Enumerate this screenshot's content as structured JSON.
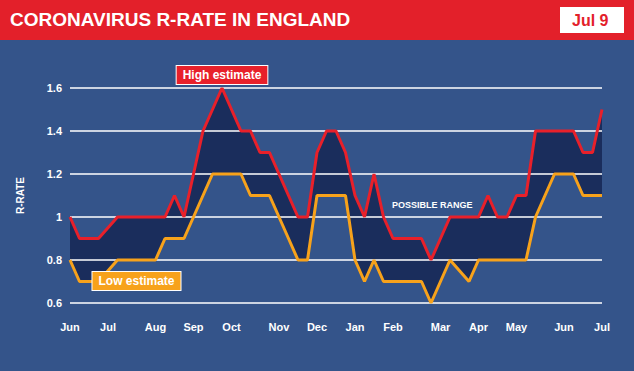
{
  "chart_data": {
    "type": "line",
    "title": "CORONAVIRUS R-RATE IN ENGLAND",
    "subtitle": "Jul 9",
    "ylabel": "R-RATE",
    "annotations": [
      {
        "text": "POSSIBLE RANGE"
      }
    ],
    "categories": [
      "Jun",
      null,
      null,
      null,
      "Jul",
      null,
      null,
      null,
      null,
      "Aug",
      null,
      null,
      null,
      "Sep",
      null,
      null,
      null,
      "Oct",
      null,
      null,
      null,
      null,
      "Nov",
      null,
      null,
      null,
      "Dec",
      null,
      null,
      null,
      "Jan",
      null,
      null,
      null,
      "Feb",
      null,
      null,
      null,
      null,
      "Mar",
      null,
      null,
      null,
      "Apr",
      null,
      null,
      null,
      "May",
      null,
      null,
      null,
      null,
      "Jun",
      null,
      null,
      null,
      "Jul"
    ],
    "series": [
      {
        "name": "High estimate",
        "color": "#e8202a",
        "values": [
          1.0,
          0.9,
          0.9,
          0.9,
          0.95,
          1.0,
          1.0,
          1.0,
          1.0,
          1.0,
          1.0,
          1.1,
          1.0,
          1.2,
          1.4,
          1.5,
          1.6,
          1.5,
          1.4,
          1.4,
          1.3,
          1.3,
          1.2,
          1.1,
          1.0,
          1.0,
          1.3,
          1.4,
          1.4,
          1.3,
          1.1,
          1.0,
          1.2,
          1.0,
          0.9,
          0.9,
          0.9,
          0.9,
          0.8,
          0.9,
          1.0,
          1.0,
          1.0,
          1.0,
          1.1,
          1.0,
          1.0,
          1.1,
          1.1,
          1.4,
          1.4,
          1.4,
          1.4,
          1.4,
          1.3,
          1.3,
          1.5
        ]
      },
      {
        "name": "Low estimate",
        "color": "#f7a21b",
        "values": [
          0.8,
          0.7,
          0.7,
          0.7,
          0.75,
          0.8,
          0.8,
          0.8,
          0.8,
          0.8,
          0.9,
          0.9,
          0.9,
          1.0,
          1.1,
          1.2,
          1.2,
          1.2,
          1.2,
          1.1,
          1.1,
          1.1,
          1.0,
          0.9,
          0.8,
          0.8,
          1.1,
          1.1,
          1.1,
          1.1,
          0.8,
          0.7,
          0.8,
          0.7,
          0.7,
          0.7,
          0.7,
          0.7,
          0.6,
          0.7,
          0.8,
          0.75,
          0.7,
          0.8,
          0.8,
          0.8,
          0.8,
          0.8,
          0.8,
          1.0,
          1.1,
          1.2,
          1.2,
          1.2,
          1.1,
          1.1,
          1.1
        ]
      }
    ],
    "ylim": [
      0.6,
      1.6
    ],
    "yticks": [
      0.6,
      0.8,
      1,
      1.2,
      1.4,
      1.6
    ],
    "grid": true
  }
}
